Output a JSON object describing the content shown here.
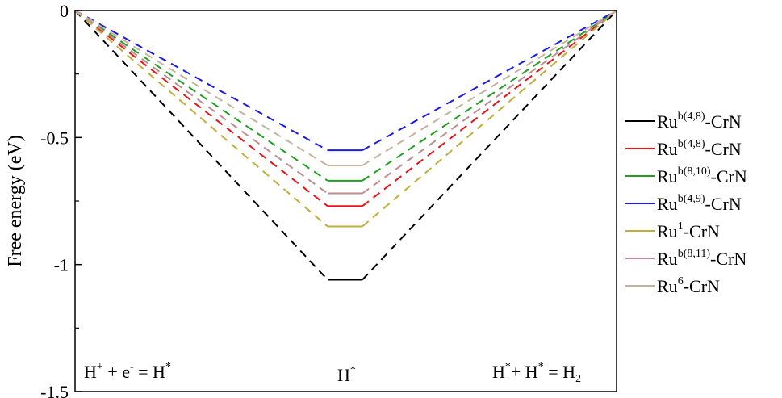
{
  "chart_data": {
    "type": "line",
    "title": "",
    "ylabel": "Free energy (eV)",
    "xlabel": "",
    "ylim": [
      -1.5,
      0
    ],
    "yticks": [
      {
        "value": 0,
        "label": "0"
      },
      {
        "value": -0.5,
        "label": "-0.5"
      },
      {
        "value": -1,
        "label": "-1"
      },
      {
        "value": -1.5,
        "label": "-1.5"
      }
    ],
    "annotations": {
      "left": {
        "base1": "H",
        "sup1": "+",
        "mid1": " + e",
        "sup2": "-",
        "mid2": " = H",
        "sup3": "*"
      },
      "center": {
        "base": "H",
        "sup": "*"
      },
      "right": {
        "base1": "H",
        "sup1": "*",
        "mid1": "+ H",
        "sup2": "*",
        "mid2": " = H",
        "sub": "2"
      }
    },
    "legend_position": "right",
    "series": [
      {
        "base": "Ru",
        "sup": "b(4,8)",
        "suffix": "-CrN",
        "color": "#000000",
        "value": -1.06
      },
      {
        "base": "Ru",
        "sup": "b(4,8)",
        "suffix": "-CrN",
        "color": "#e8141c",
        "value": -0.77
      },
      {
        "base": "Ru",
        "sup": "b(8,10)",
        "suffix": "-CrN",
        "color": "#1f9e20",
        "value": -0.67
      },
      {
        "base": "Ru",
        "sup": "b(4,9)",
        "suffix": "-CrN",
        "color": "#1a1ae8",
        "value": -0.55
      },
      {
        "base": "Ru",
        "sup": "1",
        "suffix": "-CrN",
        "color": "#bfae3a",
        "value": -0.85
      },
      {
        "base": "Ru",
        "sup": "b(8,11)",
        "suffix": "-CrN",
        "color": "#bc8e91",
        "value": -0.72
      },
      {
        "base": "Ru",
        "sup": "6",
        "suffix": "-CrN",
        "color": "#c4b39c",
        "value": -0.61
      }
    ]
  }
}
